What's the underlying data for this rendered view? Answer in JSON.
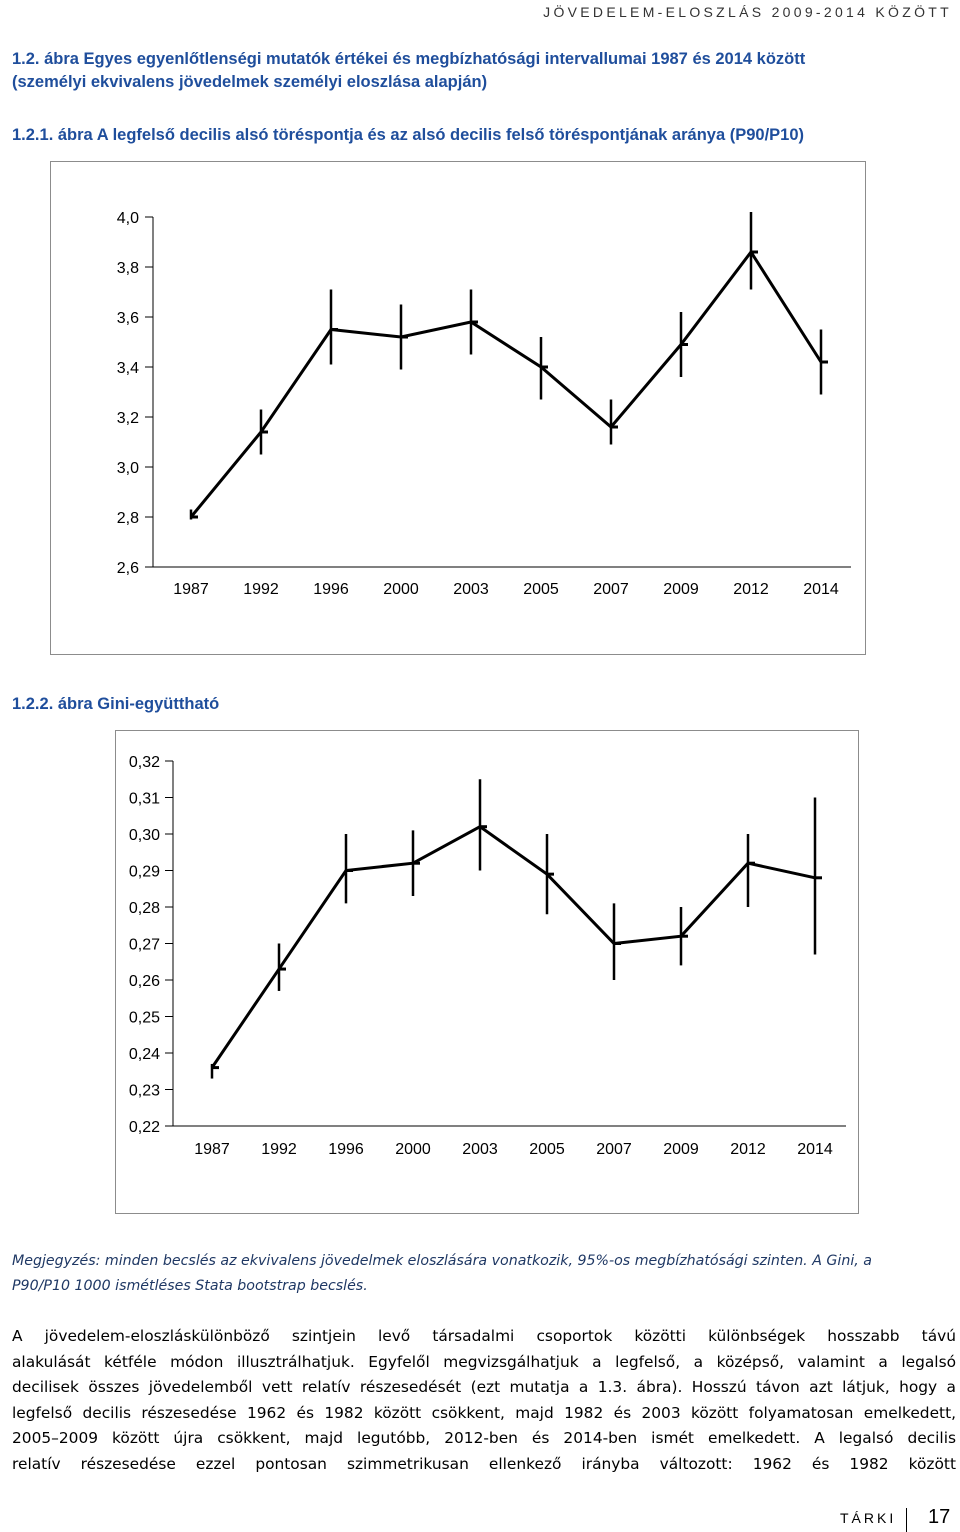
{
  "header": {
    "running_title": "JÖVEDELEM-ELOSZLÁS 2009-2014 KÖZÖTT"
  },
  "section_title": {
    "line1": "1.2. ábra Egyes egyenlőtlenségi mutatók értékei és megbízhatósági intervallumai 1987 és 2014 között",
    "line2": "(személyi ekvivalens jövedelmek személyi eloszlása alapján)"
  },
  "chart1_title": "1.2.1. ábra A legfelső decilis alsó töréspontja és az alsó decilis felső töréspontjának aránya (P90/P10)",
  "chart2_title": "1.2.2. ábra Gini-együttható",
  "chart_data": [
    {
      "type": "line",
      "title": "1.2.1. ábra A legfelső decilis alsó töréspontja és az alsó decilis felső töréspontjának aránya (P90/P10)",
      "categories": [
        "1987",
        "1992",
        "1996",
        "2000",
        "2003",
        "2005",
        "2007",
        "2009",
        "2012",
        "2014"
      ],
      "values": [
        2.8,
        3.14,
        3.55,
        3.52,
        3.58,
        3.4,
        3.16,
        3.49,
        3.86,
        3.42
      ],
      "ci_lower": [
        2.79,
        3.05,
        3.41,
        3.39,
        3.45,
        3.27,
        3.09,
        3.36,
        3.71,
        3.29
      ],
      "ci_upper": [
        2.83,
        3.23,
        3.71,
        3.65,
        3.71,
        3.52,
        3.27,
        3.62,
        4.02,
        3.55
      ],
      "yticks": [
        "4,0",
        "3,8",
        "3,6",
        "3,4",
        "3,2",
        "3,0",
        "2,8",
        "2,6"
      ],
      "ylim": [
        2.6,
        4.0
      ],
      "grid": false,
      "legend": "none"
    },
    {
      "type": "line",
      "title": "1.2.2. ábra Gini-együttható",
      "categories": [
        "1987",
        "1992",
        "1996",
        "2000",
        "2003",
        "2005",
        "2007",
        "2009",
        "2012",
        "2014"
      ],
      "values": [
        0.236,
        0.263,
        0.29,
        0.292,
        0.302,
        0.289,
        0.27,
        0.272,
        0.292,
        0.288
      ],
      "ci_lower": [
        0.233,
        0.257,
        0.281,
        0.283,
        0.29,
        0.278,
        0.26,
        0.264,
        0.28,
        0.267
      ],
      "ci_upper": [
        0.237,
        0.27,
        0.3,
        0.301,
        0.315,
        0.3,
        0.281,
        0.28,
        0.3,
        0.31
      ],
      "yticks": [
        "0,32",
        "0,31",
        "0,30",
        "0,29",
        "0,28",
        "0,27",
        "0,26",
        "0,25",
        "0,24",
        "0,23",
        "0,22"
      ],
      "ylim": [
        0.22,
        0.32
      ],
      "grid": false,
      "legend": "none"
    }
  ],
  "note": {
    "line1": "Megjegyzés: minden becslés az ekvivalens jövedelmek eloszlására vonatkozik, 95%-os megbízhatósági szinten. A Gini, a",
    "line2": "P90/P10 1000 ismétléses Stata bootstrap becslés."
  },
  "body": {
    "lines": [
      "A jövedelem-eloszláskülönböző szintjein levő társadalmi csoportok közötti különbségek hosszabb távú",
      "alakulását kétféle módon illusztrálhatjuk. Egyfelől megvizsgálhatjuk a legfelső, a középső, valamint a legalsó",
      "decilisek összes jövedelemből vett relatív részesedését (ezt mutatja a 1.3. ábra). Hosszú távon azt látjuk, hogy a",
      "legfelső decilis részesedése 1962 és 1982 között csökkent, majd 1982 és 2003 között folyamatosan emelkedett,",
      "2005–2009 között újra csökkent, majd legutóbb, 2012-ben és 2014-ben ismét emelkedett. A legalsó decilis",
      "relatív részesedése ezzel pontosan szimmetrikusan ellenkező irányba változott: 1962 és 1982 között"
    ]
  },
  "footer": {
    "org": "TÁRKI",
    "page": "17"
  }
}
